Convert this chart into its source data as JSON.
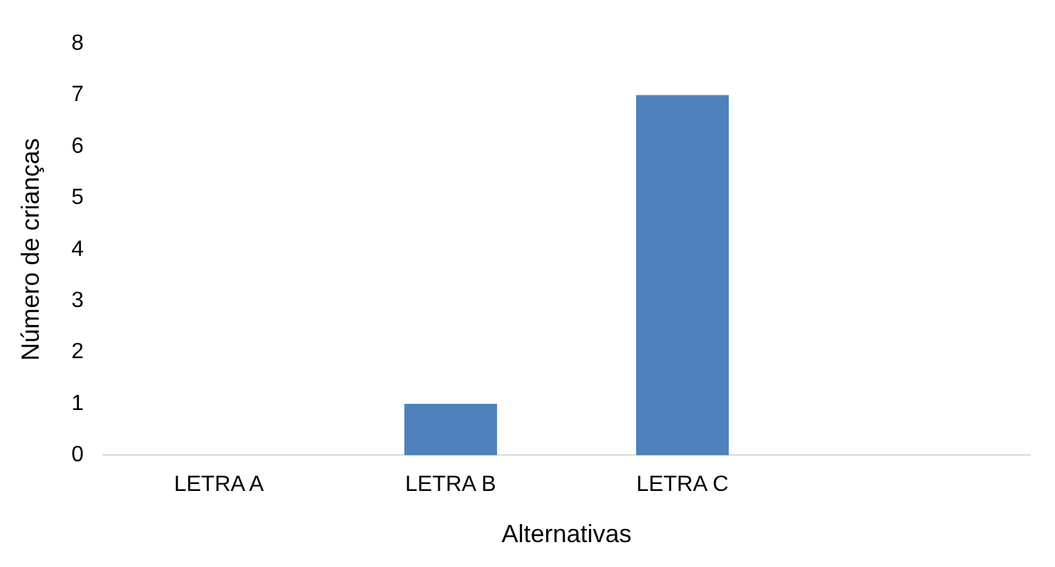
{
  "chart_data": {
    "type": "bar",
    "xlabel": "Alternativas",
    "ylabel": "Número de crianças",
    "categories": [
      "LETRA A",
      "LETRA B",
      "LETRA C",
      null
    ],
    "values": [
      0,
      1,
      7,
      null
    ],
    "color": "#4f81bd",
    "ylim": [
      0,
      8
    ],
    "yticks": [
      0,
      1,
      2,
      3,
      4,
      5,
      6,
      7,
      8
    ],
    "grid": false,
    "legend": false
  }
}
